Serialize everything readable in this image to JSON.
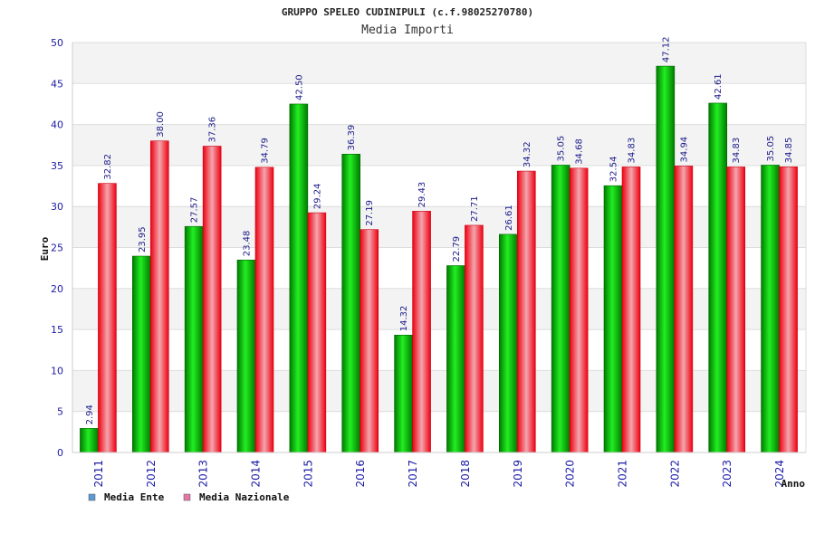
{
  "chart_data": {
    "type": "bar",
    "title": "GRUPPO SPELEO CUDINIPULI (c.f.98025270780)",
    "subtitle": "Media Importi",
    "xlabel": "Anno",
    "ylabel": "Euro",
    "ylim": [
      0,
      50
    ],
    "yticks": [
      0,
      5,
      10,
      15,
      20,
      25,
      30,
      35,
      40,
      45,
      50
    ],
    "grid": true,
    "legend_position": "bottom-left",
    "categories": [
      "2011",
      "2012",
      "2013",
      "2014",
      "2015",
      "2016",
      "2017",
      "2018",
      "2019",
      "2020",
      "2021",
      "2022",
      "2023",
      "2024"
    ],
    "series": [
      {
        "name": "Media Ente",
        "color": "#00bb00",
        "legend_color": "#5b9bd5",
        "values": [
          2.94,
          23.95,
          27.57,
          23.48,
          42.5,
          36.39,
          14.32,
          22.79,
          26.61,
          35.05,
          32.54,
          47.12,
          42.61,
          35.05
        ],
        "labels": [
          "2.94",
          "23.95",
          "27.57",
          "23.48",
          "42.50",
          "36.39",
          "14.32",
          "22.79",
          "26.61",
          "35.05",
          "32.54",
          "47.12",
          "42.61",
          "35.05"
        ]
      },
      {
        "name": "Media Nazionale",
        "color": "#ee1122",
        "legend_color": "#e377a8",
        "values": [
          32.82,
          38.0,
          37.36,
          34.79,
          29.24,
          27.19,
          29.43,
          27.71,
          34.32,
          34.68,
          34.83,
          34.94,
          34.83,
          34.85
        ],
        "labels": [
          "32.82",
          "38.00",
          "37.36",
          "34.79",
          "29.24",
          "27.19",
          "29.43",
          "27.71",
          "34.32",
          "34.68",
          "34.83",
          "34.94",
          "34.83",
          "34.85"
        ]
      }
    ]
  }
}
